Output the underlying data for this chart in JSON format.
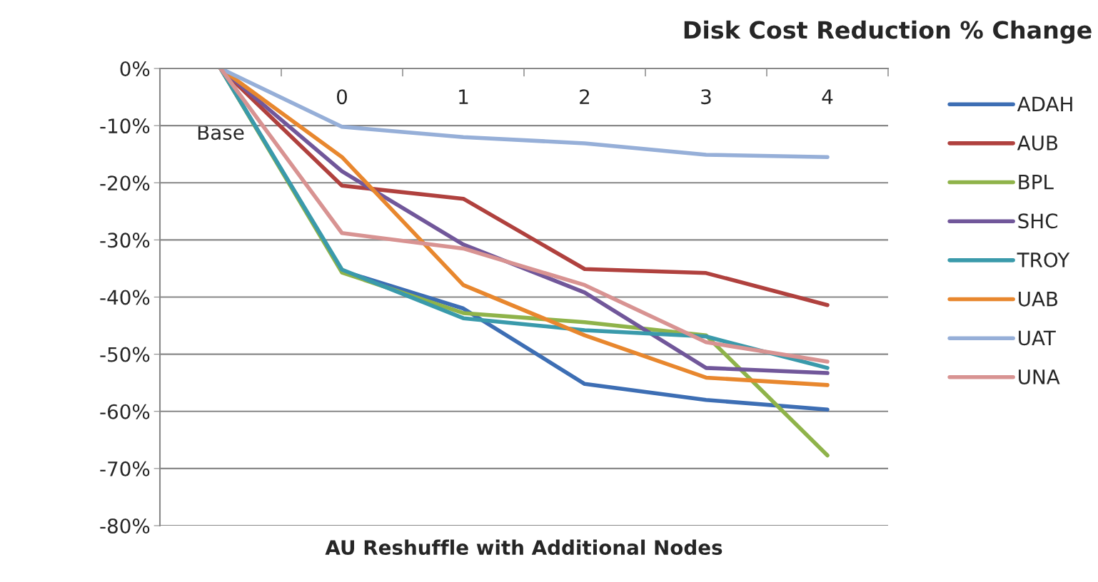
{
  "chart_data": {
    "type": "line",
    "title": "Disk Cost Reduction % Change",
    "xlabel": "AU Reshuffle with Additional Nodes",
    "categories": [
      "Base",
      "0",
      "1",
      "2",
      "3",
      "4"
    ],
    "series": [
      {
        "name": "ADAH",
        "color": "#3d6eb4",
        "values": [
          0,
          -35.4,
          -42,
          -55.2,
          -58,
          -59.7
        ]
      },
      {
        "name": "AUB",
        "color": "#b0413e",
        "values": [
          0,
          -20.5,
          -22.8,
          -35.1,
          -35.8,
          -41.4
        ]
      },
      {
        "name": "BPL",
        "color": "#8fb34a",
        "values": [
          0,
          -35.7,
          -42.8,
          -44.4,
          -46.7,
          -67.7
        ]
      },
      {
        "name": "SHC",
        "color": "#71579a",
        "values": [
          0,
          -18,
          -30.8,
          -39.2,
          -52.4,
          -53.3
        ]
      },
      {
        "name": "TROY",
        "color": "#3a9aab",
        "values": [
          0,
          -35.2,
          -43.7,
          -45.8,
          -46.9,
          -52.4
        ]
      },
      {
        "name": "UAB",
        "color": "#e8872e",
        "values": [
          0,
          -15.5,
          -37.9,
          -46.7,
          -54.1,
          -55.4
        ]
      },
      {
        "name": "UAT",
        "color": "#96afd8",
        "values": [
          0,
          -10.2,
          -12,
          -13.1,
          -15.1,
          -15.5
        ]
      },
      {
        "name": "UNA",
        "color": "#d89392",
        "values": [
          0,
          -28.8,
          -31.5,
          -37.9,
          -47.9,
          -51.3
        ]
      }
    ],
    "ylim": [
      -80,
      0
    ],
    "yticks": [
      {
        "value": 0,
        "label": "0%"
      },
      {
        "value": -10,
        "label": "-10%"
      },
      {
        "value": -20,
        "label": "-20%"
      },
      {
        "value": -30,
        "label": "-30%"
      },
      {
        "value": -40,
        "label": "-40%"
      },
      {
        "value": -50,
        "label": "-50%"
      },
      {
        "value": -60,
        "label": "-60%"
      },
      {
        "value": -70,
        "label": "-70%"
      },
      {
        "value": -80,
        "label": "-80%"
      }
    ],
    "grid": "y",
    "legend": "right",
    "marker": "none",
    "line_style": "solid"
  }
}
